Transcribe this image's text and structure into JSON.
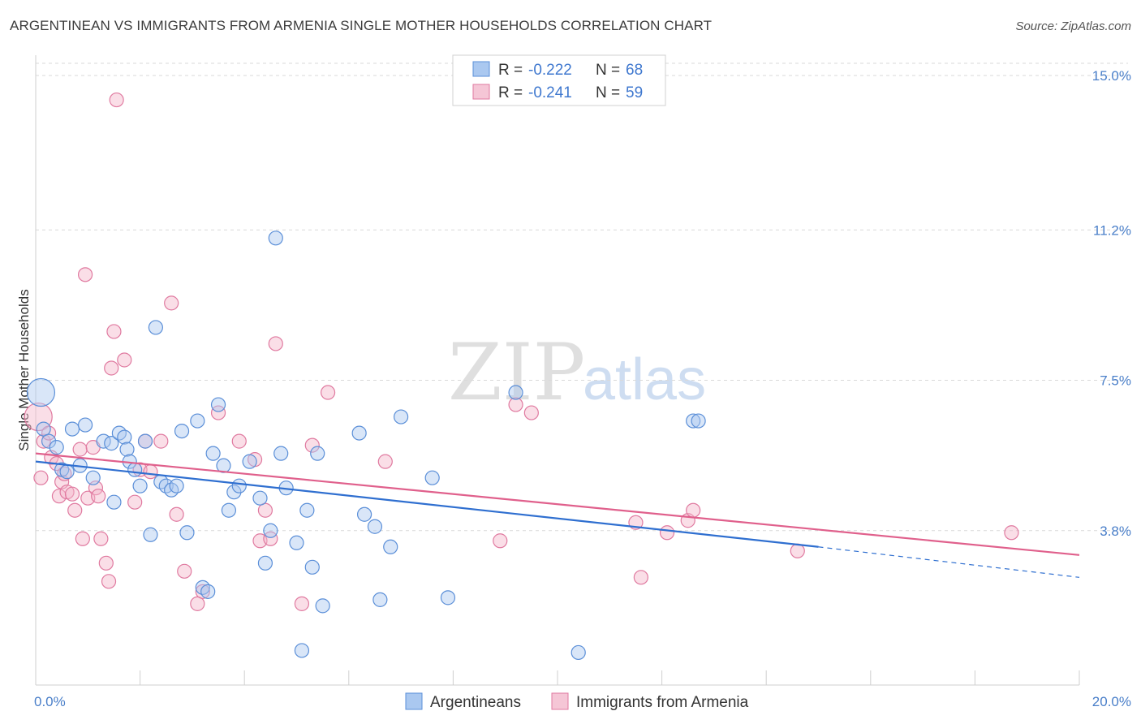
{
  "header": {
    "title": "ARGENTINEAN VS IMMIGRANTS FROM ARMENIA SINGLE MOTHER HOUSEHOLDS CORRELATION CHART",
    "source": "Source: ZipAtlas.com"
  },
  "watermark": {
    "zip": "ZIP",
    "atlas": "atlas"
  },
  "legend": {
    "r_label": "R =",
    "n_label": "N =",
    "rows": [
      {
        "r": "-0.222",
        "n": "68"
      },
      {
        "r": "-0.241",
        "n": "59"
      }
    ]
  },
  "bottom_legend": [
    "Argentineans",
    "Immigrants from Armenia"
  ],
  "chart_data": {
    "type": "scatter",
    "title": "ARGENTINEAN VS IMMIGRANTS FROM ARMENIA SINGLE MOTHER HOUSEHOLDS CORRELATION CHART",
    "xlabel": "",
    "ylabel": "Single Mother Households",
    "xlim": [
      0,
      20
    ],
    "ylim": [
      0,
      15.5
    ],
    "x_tick_labels": [
      "0.0%",
      "20.0%"
    ],
    "y_ticks": [
      3.8,
      7.5,
      11.2,
      15.0
    ],
    "y_tick_labels": [
      "3.8%",
      "7.5%",
      "11.2%",
      "15.0%"
    ],
    "grid": true,
    "legend_position": "top-center",
    "colors": {
      "blue_fill": "#aac8f0",
      "blue_edge": "#5b8fd8",
      "blue_line": "#2f6fd0",
      "pink_fill": "#f5b5ca",
      "pink_edge": "#e07aa0",
      "pink_line": "#e0608c"
    },
    "series": [
      {
        "name": "Argentineans",
        "trend": {
          "x0": 0,
          "y0": 5.5,
          "x1": 15.0,
          "y1": 3.4,
          "dash_to_x": 20,
          "dash_to_y": 2.65
        },
        "points": [
          [
            0.1,
            7.2,
            "big"
          ],
          [
            0.15,
            6.3
          ],
          [
            0.25,
            6.0
          ],
          [
            0.4,
            5.85
          ],
          [
            0.5,
            5.3
          ],
          [
            0.6,
            5.25
          ],
          [
            0.7,
            6.3
          ],
          [
            0.85,
            5.4
          ],
          [
            0.95,
            6.4
          ],
          [
            1.1,
            5.1
          ],
          [
            1.3,
            6.0
          ],
          [
            1.45,
            5.95
          ],
          [
            1.5,
            4.5
          ],
          [
            1.6,
            6.2
          ],
          [
            1.7,
            6.1
          ],
          [
            1.75,
            5.8
          ],
          [
            1.8,
            5.5
          ],
          [
            1.9,
            5.3
          ],
          [
            2.0,
            4.9
          ],
          [
            2.1,
            6.0
          ],
          [
            2.2,
            3.7
          ],
          [
            2.3,
            8.8
          ],
          [
            2.4,
            5.0
          ],
          [
            2.5,
            4.9
          ],
          [
            2.6,
            4.8
          ],
          [
            2.7,
            4.9
          ],
          [
            2.8,
            6.25
          ],
          [
            2.9,
            3.75
          ],
          [
            3.1,
            6.5
          ],
          [
            3.2,
            2.4
          ],
          [
            3.3,
            2.3
          ],
          [
            3.4,
            5.7
          ],
          [
            3.5,
            6.9
          ],
          [
            3.6,
            5.4
          ],
          [
            3.7,
            4.3
          ],
          [
            3.8,
            4.75
          ],
          [
            3.9,
            4.9
          ],
          [
            4.1,
            5.5
          ],
          [
            4.3,
            4.6
          ],
          [
            4.4,
            3.0
          ],
          [
            4.5,
            3.8
          ],
          [
            4.6,
            11.0
          ],
          [
            4.7,
            5.7
          ],
          [
            4.8,
            4.85
          ],
          [
            5.0,
            3.5
          ],
          [
            5.1,
            0.85
          ],
          [
            5.2,
            4.3
          ],
          [
            5.3,
            2.9
          ],
          [
            5.4,
            5.7
          ],
          [
            5.5,
            1.95
          ],
          [
            6.2,
            6.2
          ],
          [
            6.3,
            4.2
          ],
          [
            6.5,
            3.9
          ],
          [
            6.6,
            2.1
          ],
          [
            6.8,
            3.4
          ],
          [
            7.0,
            6.6
          ],
          [
            7.6,
            5.1
          ],
          [
            7.9,
            2.15
          ],
          [
            9.2,
            7.2
          ],
          [
            10.4,
            0.8
          ],
          [
            12.6,
            6.5
          ],
          [
            12.7,
            6.5
          ]
        ]
      },
      {
        "name": "Immigrants from Armenia",
        "trend": {
          "x0": 0,
          "y0": 5.7,
          "x1": 20,
          "y1": 3.2
        },
        "points": [
          [
            0.05,
            6.6,
            "big"
          ],
          [
            0.1,
            5.1
          ],
          [
            0.15,
            6.0
          ],
          [
            0.25,
            6.2
          ],
          [
            0.3,
            5.6
          ],
          [
            0.4,
            5.45
          ],
          [
            0.45,
            4.65
          ],
          [
            0.5,
            5.0
          ],
          [
            0.55,
            5.2
          ],
          [
            0.6,
            4.75
          ],
          [
            0.7,
            4.7
          ],
          [
            0.75,
            4.3
          ],
          [
            0.85,
            5.8
          ],
          [
            0.9,
            3.6
          ],
          [
            0.95,
            10.1
          ],
          [
            1.0,
            4.6
          ],
          [
            1.1,
            5.85
          ],
          [
            1.15,
            4.85
          ],
          [
            1.2,
            4.65
          ],
          [
            1.25,
            3.6
          ],
          [
            1.35,
            3.0
          ],
          [
            1.4,
            2.55
          ],
          [
            1.45,
            7.8
          ],
          [
            1.5,
            8.7
          ],
          [
            1.55,
            14.4
          ],
          [
            1.7,
            8.0
          ],
          [
            1.9,
            4.5
          ],
          [
            2.0,
            5.3
          ],
          [
            2.1,
            6.0
          ],
          [
            2.2,
            5.25
          ],
          [
            2.4,
            6.0
          ],
          [
            2.6,
            9.4
          ],
          [
            2.7,
            4.2
          ],
          [
            2.85,
            2.8
          ],
          [
            3.1,
            2.0
          ],
          [
            3.2,
            2.3
          ],
          [
            3.5,
            6.7
          ],
          [
            3.9,
            6.0
          ],
          [
            4.2,
            5.55
          ],
          [
            4.3,
            3.55
          ],
          [
            4.4,
            4.3
          ],
          [
            4.5,
            3.6
          ],
          [
            4.6,
            8.4
          ],
          [
            5.1,
            2.0
          ],
          [
            5.3,
            5.9
          ],
          [
            5.6,
            7.2
          ],
          [
            6.7,
            5.5
          ],
          [
            8.9,
            3.55
          ],
          [
            9.2,
            6.9
          ],
          [
            9.5,
            6.7
          ],
          [
            11.5,
            4.0
          ],
          [
            11.6,
            2.65
          ],
          [
            12.1,
            3.75
          ],
          [
            12.5,
            4.05
          ],
          [
            12.6,
            4.3
          ],
          [
            14.6,
            3.3
          ],
          [
            18.7,
            3.75
          ]
        ]
      }
    ]
  }
}
